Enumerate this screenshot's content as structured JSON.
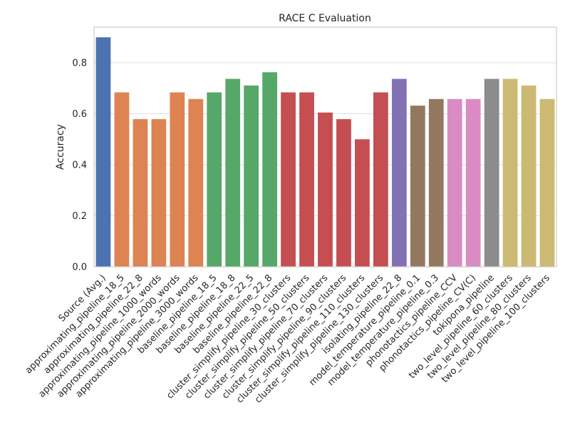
{
  "chart_data": {
    "type": "bar",
    "title": "RACE C Evaluation",
    "xlabel": "",
    "ylabel": "Accuracy",
    "ylim": [
      0,
      0.94
    ],
    "yticks": [
      0.0,
      0.2,
      0.4,
      0.6,
      0.8
    ],
    "ytick_labels": [
      "0.0",
      "0.2",
      "0.4",
      "0.6",
      "0.8"
    ],
    "grid": "y",
    "categories": [
      "Source (Avg.)",
      "approximating_pipeline_18_5",
      "approximating_pipeline_22_8",
      "approximating_pipeline_1000_words",
      "approximating_pipeline_2000_words",
      "approximating_pipeline_3000_words",
      "baseline_pipeline_18_5",
      "baseline_pipeline_18_8",
      "baseline_pipeline_22_5",
      "baseline_pipeline_22_8",
      "cluster_simplify_pipeline_30_clusters",
      "cluster_simplify_pipeline_50_clusters",
      "cluster_simplify_pipeline_70_clusters",
      "cluster_simplify_pipeline_90_clusters",
      "cluster_simplify_pipeline_110_clusters",
      "cluster_simplify_pipeline_130_clusters",
      "isolating_pipeline_22_8",
      "model_temperature_pipeline_0.1",
      "model_temperature_pipeline_0.3",
      "phonotactics_pipeline_CCV",
      "phonotactics_pipeline_CV(C)",
      "tokipona_pipeline",
      "two_level_pipeline_60_clusters",
      "two_level_pipeline_80_clusters",
      "two_level_pipeline_100_clusters"
    ],
    "values": [
      0.9,
      0.684,
      0.579,
      0.579,
      0.684,
      0.658,
      0.684,
      0.737,
      0.711,
      0.763,
      0.684,
      0.684,
      0.605,
      0.579,
      0.5,
      0.684,
      0.737,
      0.632,
      0.658,
      0.658,
      0.658,
      0.737,
      0.737,
      0.711,
      0.658
    ],
    "colors": [
      "#4c72b0",
      "#dd8452",
      "#dd8452",
      "#dd8452",
      "#dd8452",
      "#dd8452",
      "#55a868",
      "#55a868",
      "#55a868",
      "#55a868",
      "#c44e52",
      "#c44e52",
      "#c44e52",
      "#c44e52",
      "#c44e52",
      "#c44e52",
      "#8172b3",
      "#937860",
      "#937860",
      "#da8bc3",
      "#da8bc3",
      "#8c8c8c",
      "#ccb974",
      "#ccb974",
      "#ccb974"
    ]
  }
}
